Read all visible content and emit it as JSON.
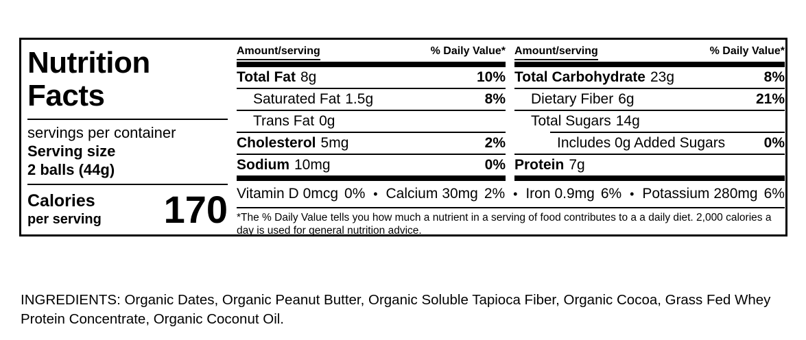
{
  "label": {
    "title": "Nutrition Facts",
    "servings_per_container": "servings per container",
    "serving_size_label": "Serving size",
    "serving_size_value": "2 balls (44g)",
    "calories_label": "Calories",
    "calories_sub": "per serving",
    "calories_value": "170",
    "col_header_amount": "Amount/serving",
    "col_header_dv": "% Daily Value*",
    "left_rows": [
      {
        "name": "Total Fat",
        "amount": "8g",
        "dv": "10%"
      },
      {
        "name": "Saturated Fat",
        "amount": "1.5g",
        "dv": "8%"
      },
      {
        "name": "Trans Fat",
        "amount": "0g",
        "dv": ""
      },
      {
        "name": "Cholesterol",
        "amount": "5mg",
        "dv": "2%"
      },
      {
        "name": "Sodium",
        "amount": "10mg",
        "dv": "0%"
      }
    ],
    "right_rows": [
      {
        "name": "Total Carbohydrate",
        "amount": "23g",
        "dv": "8%"
      },
      {
        "name": "Dietary Fiber",
        "amount": "6g",
        "dv": "21%"
      },
      {
        "name": "Total Sugars",
        "amount": "14g",
        "dv": ""
      },
      {
        "name": "Includes 0g Added Sugars",
        "amount": "",
        "dv": "0%"
      },
      {
        "name": "Protein",
        "amount": "7g",
        "dv": ""
      }
    ],
    "micronutrients": [
      {
        "name": "Vitamin D",
        "amount": "0mcg",
        "dv": "0%"
      },
      {
        "name": "Calcium",
        "amount": "30mg",
        "dv": "2%"
      },
      {
        "name": "Iron",
        "amount": "0.9mg",
        "dv": "6%"
      },
      {
        "name": "Potassium",
        "amount": "280mg",
        "dv": "6%"
      }
    ],
    "micronutrient_separator": "•",
    "footnote": "*The % Daily Value tells you how much a nutrient in a serving of food contributes to a a daily diet. 2,000 calories a day is used for general nutrition advice."
  },
  "ingredients_text": "INGREDIENTS: Organic Dates, Organic Peanut Butter, Organic Soluble Tapioca Fiber, Organic Cocoa, Grass Fed Whey Protein Concentrate, Organic Coconut Oil.",
  "colors": {
    "text": "#000000",
    "background": "#ffffff"
  }
}
